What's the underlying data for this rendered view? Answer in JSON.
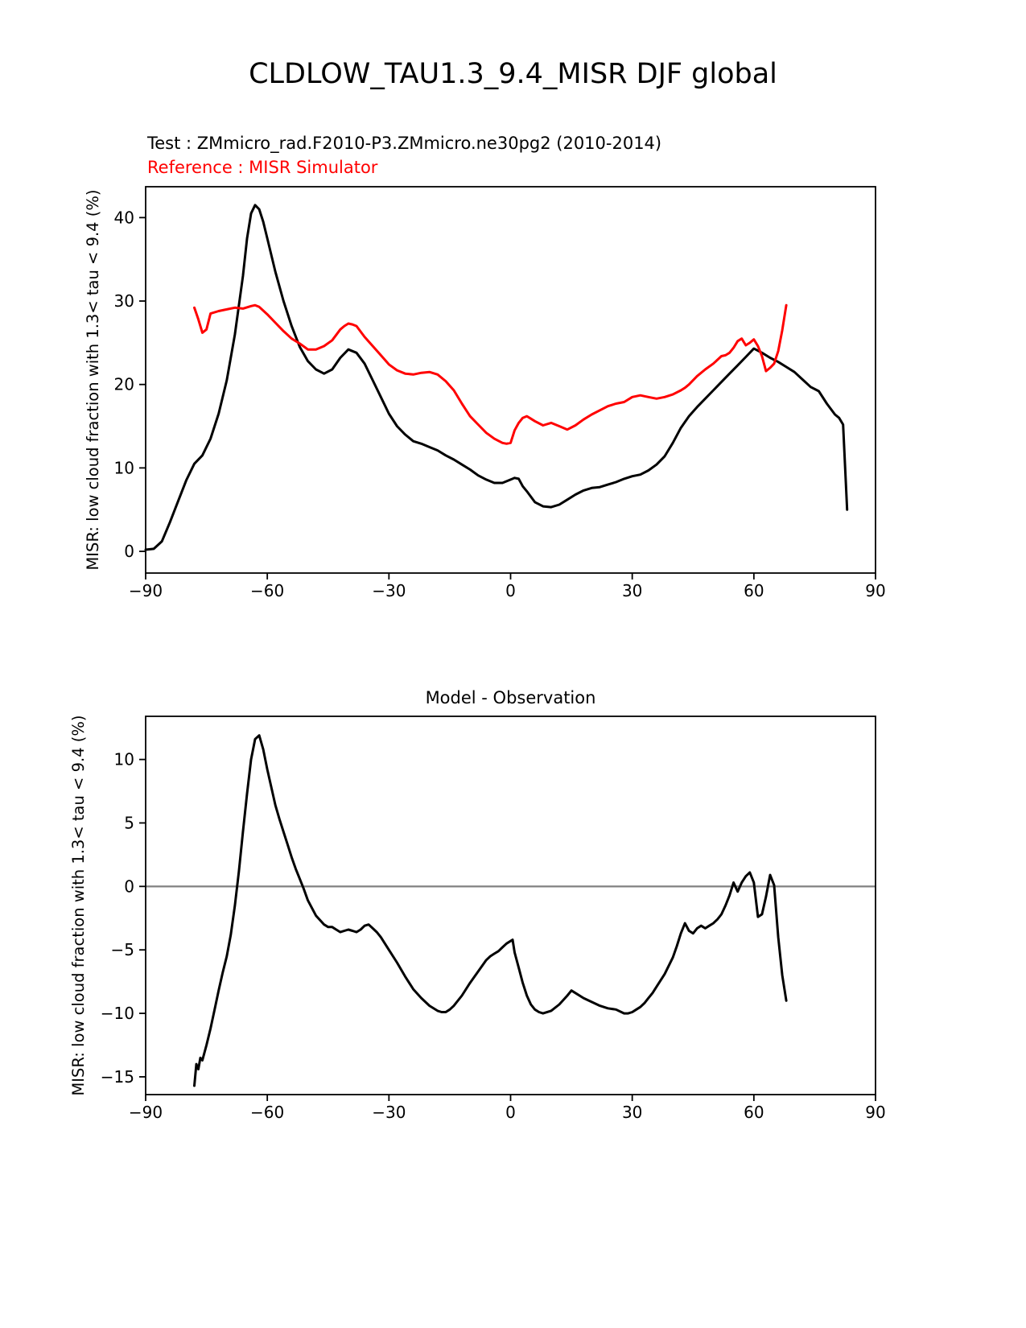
{
  "figure": {
    "title": "CLDLOW_TAU1.3_9.4_MISR DJF global"
  },
  "chart_data": [
    {
      "type": "line",
      "title": "",
      "xlabel": "",
      "ylabel": "MISR: low cloud fraction with 1.3< tau < 9.4 (%)",
      "xlim": [
        -90,
        90
      ],
      "ylim": [
        -2.6,
        43.7
      ],
      "xticks": [
        -90,
        -60,
        -30,
        0,
        30,
        60,
        90
      ],
      "yticks": [
        0,
        10,
        20,
        30,
        40
      ],
      "grid": false,
      "legend_position": "top-left-above-axes",
      "series": [
        {
          "name": "Test : ZMmicro_rad.F2010-P3.ZMmicro.ne30pg2 (2010-2014)",
          "color": "#000000",
          "x": [
            -90,
            -88,
            -86,
            -84,
            -82,
            -80,
            -78,
            -76,
            -74,
            -72,
            -70,
            -68,
            -66,
            -65,
            -64,
            -63,
            -62,
            -61,
            -60,
            -58,
            -56,
            -54,
            -52,
            -50,
            -48,
            -46,
            -44,
            -42,
            -40,
            -38,
            -36,
            -34,
            -32,
            -30,
            -28,
            -26,
            -24,
            -22,
            -20,
            -18,
            -16,
            -14,
            -12,
            -10,
            -8,
            -6,
            -4,
            -2,
            0,
            1,
            2,
            3,
            4,
            6,
            8,
            10,
            12,
            14,
            16,
            18,
            20,
            22,
            24,
            26,
            28,
            30,
            32,
            34,
            36,
            38,
            40,
            42,
            44,
            46,
            48,
            50,
            52,
            54,
            56,
            58,
            60,
            62,
            64,
            66,
            68,
            70,
            72,
            74,
            76,
            78,
            80,
            81,
            82,
            83
          ],
          "y": [
            0.2,
            0.3,
            1.2,
            3.5,
            6.0,
            8.5,
            10.5,
            11.5,
            13.5,
            16.5,
            20.5,
            26.0,
            33.0,
            37.5,
            40.5,
            41.5,
            41.0,
            39.5,
            37.5,
            33.5,
            30.0,
            27.0,
            24.5,
            22.8,
            21.8,
            21.3,
            21.8,
            23.2,
            24.2,
            23.8,
            22.5,
            20.5,
            18.5,
            16.5,
            15.0,
            14.0,
            13.2,
            12.9,
            12.5,
            12.1,
            11.5,
            11.0,
            10.4,
            9.8,
            9.1,
            8.6,
            8.2,
            8.2,
            8.6,
            8.8,
            8.7,
            7.8,
            7.2,
            5.9,
            5.4,
            5.3,
            5.6,
            6.2,
            6.8,
            7.3,
            7.6,
            7.7,
            8.0,
            8.3,
            8.7,
            9.0,
            9.2,
            9.7,
            10.4,
            11.4,
            13.0,
            14.8,
            16.2,
            17.3,
            18.3,
            19.3,
            20.3,
            21.3,
            22.3,
            23.3,
            24.3,
            23.8,
            23.2,
            22.7,
            22.1,
            21.5,
            20.6,
            19.7,
            19.2,
            17.7,
            16.4,
            16.0,
            15.2,
            5.0
          ]
        },
        {
          "name": "Reference : MISR Simulator",
          "color": "#ff0000",
          "x": [
            -78,
            -77,
            -76,
            -75,
            -74,
            -72,
            -70,
            -68,
            -66,
            -64,
            -63,
            -62,
            -60,
            -58,
            -56,
            -54,
            -52,
            -50,
            -48,
            -46,
            -44,
            -42,
            -41,
            -40,
            -39,
            -38,
            -36,
            -34,
            -32,
            -30,
            -28,
            -26,
            -24,
            -22,
            -20,
            -18,
            -16,
            -14,
            -12,
            -10,
            -8,
            -6,
            -4,
            -2,
            -1,
            0,
            1,
            2,
            3,
            4,
            5,
            6,
            8,
            10,
            12,
            14,
            16,
            18,
            20,
            22,
            24,
            26,
            28,
            30,
            32,
            34,
            36,
            38,
            40,
            42,
            43,
            44,
            46,
            48,
            50,
            52,
            53,
            54,
            55,
            56,
            57,
            58,
            59,
            60,
            61,
            62,
            63,
            64,
            65,
            66,
            67,
            68
          ],
          "y": [
            29.2,
            27.8,
            26.2,
            26.6,
            28.5,
            28.8,
            29.0,
            29.2,
            29.1,
            29.4,
            29.5,
            29.3,
            28.4,
            27.4,
            26.4,
            25.5,
            24.9,
            24.2,
            24.2,
            24.6,
            25.3,
            26.6,
            27.0,
            27.3,
            27.2,
            27.0,
            25.7,
            24.6,
            23.5,
            22.4,
            21.7,
            21.3,
            21.2,
            21.4,
            21.5,
            21.2,
            20.4,
            19.3,
            17.7,
            16.2,
            15.2,
            14.2,
            13.5,
            13.0,
            12.9,
            13.0,
            14.5,
            15.4,
            16.0,
            16.2,
            15.9,
            15.6,
            15.1,
            15.4,
            15.0,
            14.6,
            15.1,
            15.8,
            16.4,
            16.9,
            17.4,
            17.7,
            17.9,
            18.5,
            18.7,
            18.5,
            18.3,
            18.5,
            18.8,
            19.3,
            19.6,
            20.0,
            21.0,
            21.8,
            22.5,
            23.4,
            23.5,
            23.8,
            24.4,
            25.2,
            25.5,
            24.7,
            25.0,
            25.4,
            24.6,
            23.4,
            21.6,
            22.0,
            22.5,
            24.0,
            26.5,
            29.5
          ]
        }
      ]
    },
    {
      "type": "line",
      "title": "Model - Observation",
      "xlabel": "",
      "ylabel": "MISR: low cloud fraction with 1.3< tau < 9.4 (%)",
      "xlim": [
        -90,
        90
      ],
      "ylim": [
        -16.4,
        13.4
      ],
      "xticks": [
        -90,
        -60,
        -30,
        0,
        30,
        60,
        90
      ],
      "yticks": [
        -15,
        -10,
        -5,
        0,
        5,
        10
      ],
      "grid": false,
      "hline": {
        "y": 0,
        "color": "#808080"
      },
      "series": [
        {
          "name": "Model - Observation",
          "color": "#000000",
          "x": [
            -78,
            -77.5,
            -77,
            -76.5,
            -76,
            -75,
            -74,
            -73,
            -72,
            -71,
            -70,
            -69,
            -68,
            -67,
            -66,
            -65,
            -64,
            -63,
            -62,
            -61,
            -60,
            -59,
            -58,
            -57,
            -56,
            -55,
            -54,
            -53,
            -52,
            -51,
            -50,
            -48,
            -46,
            -45,
            -44,
            -43,
            -42,
            -41,
            -40,
            -39,
            -38,
            -37,
            -36,
            -35,
            -34,
            -33,
            -32,
            -30,
            -28,
            -26,
            -24,
            -22,
            -20,
            -18,
            -17,
            -16,
            -15,
            -14,
            -12,
            -10,
            -8,
            -6,
            -5,
            -4,
            -3,
            -2,
            -1,
            0,
            0.5,
            1,
            2,
            3,
            4,
            5,
            6,
            7,
            8,
            10,
            12,
            14,
            15,
            16,
            18,
            20,
            22,
            24,
            26,
            28,
            29,
            30,
            31,
            32,
            33,
            34,
            35,
            36,
            38,
            40,
            41,
            42,
            43,
            44,
            45,
            46,
            47,
            48,
            49,
            50,
            51,
            52,
            53,
            54,
            55,
            56,
            57,
            58,
            59,
            60,
            61,
            62,
            63,
            64,
            65,
            66,
            67,
            68
          ],
          "y": [
            -15.7,
            -14.0,
            -14.4,
            -13.5,
            -13.7,
            -12.5,
            -11.2,
            -9.7,
            -8.2,
            -6.8,
            -5.5,
            -3.8,
            -1.5,
            1.2,
            4.3,
            7.3,
            10.0,
            11.6,
            11.9,
            10.8,
            9.2,
            7.8,
            6.4,
            5.3,
            4.3,
            3.3,
            2.3,
            1.4,
            0.6,
            -0.2,
            -1.1,
            -2.3,
            -3.0,
            -3.2,
            -3.2,
            -3.4,
            -3.6,
            -3.5,
            -3.4,
            -3.5,
            -3.6,
            -3.4,
            -3.1,
            -3.0,
            -3.3,
            -3.6,
            -4.0,
            -5.0,
            -6.0,
            -7.1,
            -8.1,
            -8.8,
            -9.4,
            -9.8,
            -9.9,
            -9.9,
            -9.7,
            -9.4,
            -8.6,
            -7.6,
            -6.7,
            -5.8,
            -5.5,
            -5.3,
            -5.1,
            -4.8,
            -4.5,
            -4.3,
            -4.2,
            -5.2,
            -6.4,
            -7.6,
            -8.6,
            -9.3,
            -9.7,
            -9.9,
            -10.0,
            -9.8,
            -9.3,
            -8.6,
            -8.2,
            -8.4,
            -8.8,
            -9.1,
            -9.4,
            -9.6,
            -9.7,
            -10.0,
            -10.0,
            -9.9,
            -9.7,
            -9.5,
            -9.2,
            -8.8,
            -8.4,
            -7.9,
            -6.9,
            -5.6,
            -4.7,
            -3.7,
            -2.9,
            -3.5,
            -3.7,
            -3.3,
            -3.1,
            -3.3,
            -3.1,
            -2.9,
            -2.6,
            -2.2,
            -1.5,
            -0.7,
            0.3,
            -0.4,
            0.3,
            0.8,
            1.1,
            0.3,
            -2.4,
            -2.2,
            -0.8,
            0.9,
            0.1,
            -4.0,
            -7.0,
            -9.0
          ]
        }
      ]
    }
  ]
}
